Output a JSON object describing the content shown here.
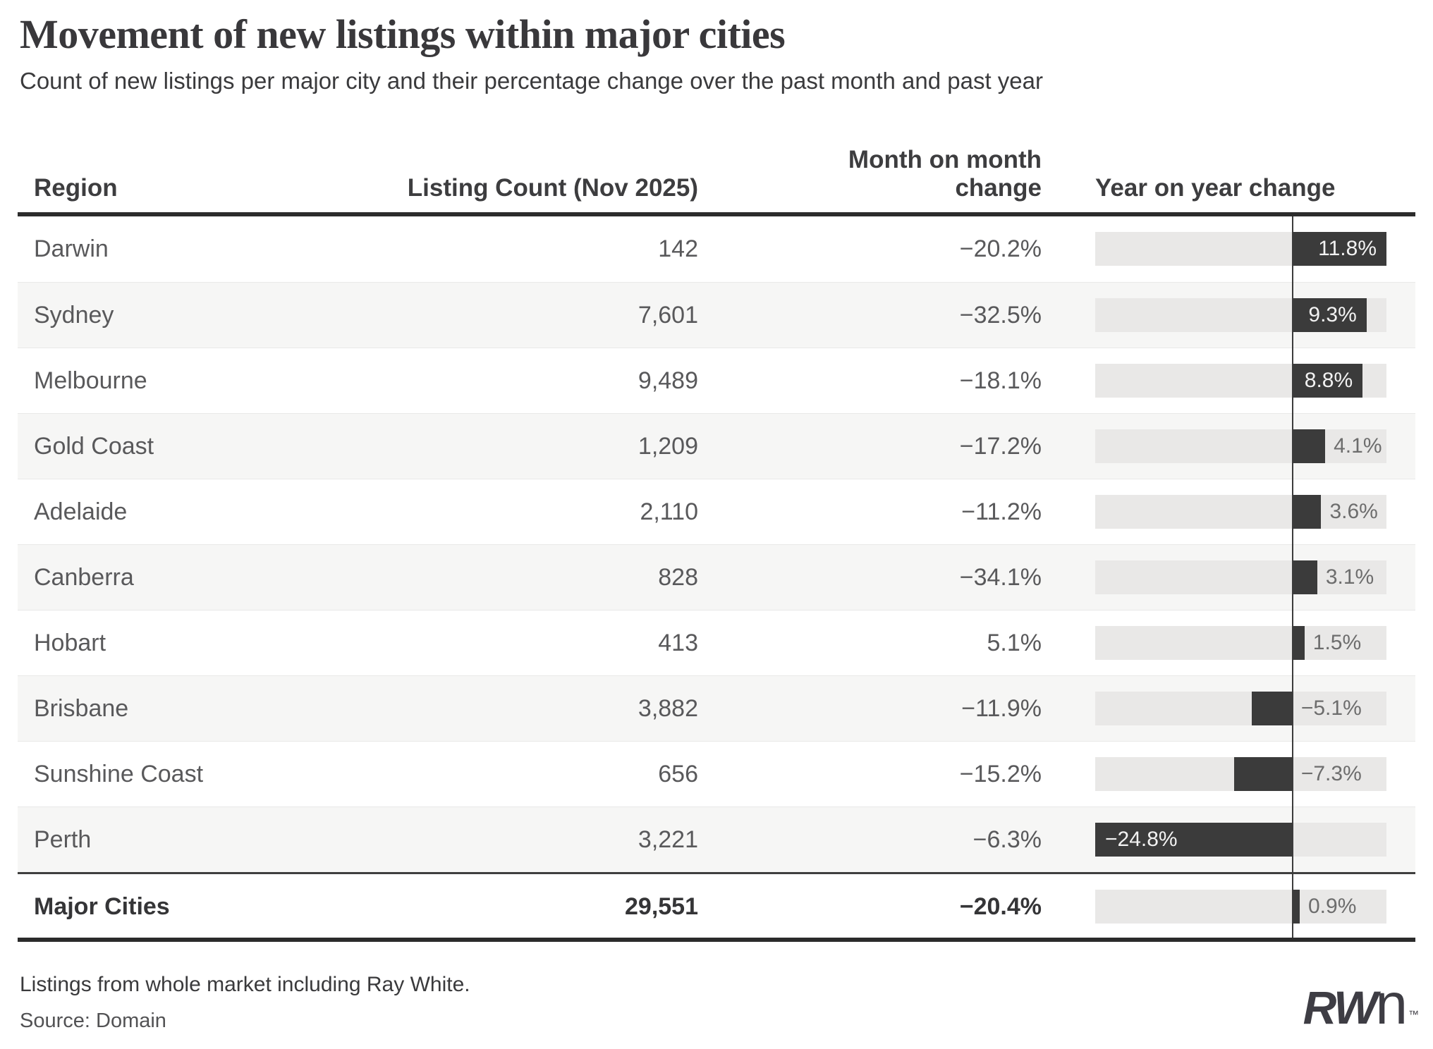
{
  "page": {
    "title": "Movement of new listings within major cities",
    "subtitle": "Count of new listings per major city and their percentage change over the past month and past year"
  },
  "table": {
    "headers": {
      "region": "Region",
      "count": "Listing Count (Nov 2025)",
      "mom": "Month on month change",
      "yoy": "Year on year change"
    },
    "rows": [
      {
        "region": "Darwin",
        "count": "142",
        "mom": "−20.2%",
        "yoy": 11.8,
        "yoy_label": "11.8%"
      },
      {
        "region": "Sydney",
        "count": "7,601",
        "mom": "−32.5%",
        "yoy": 9.3,
        "yoy_label": "9.3%"
      },
      {
        "region": "Melbourne",
        "count": "9,489",
        "mom": "−18.1%",
        "yoy": 8.8,
        "yoy_label": "8.8%"
      },
      {
        "region": "Gold Coast",
        "count": "1,209",
        "mom": "−17.2%",
        "yoy": 4.1,
        "yoy_label": "4.1%"
      },
      {
        "region": "Adelaide",
        "count": "2,110",
        "mom": "−11.2%",
        "yoy": 3.6,
        "yoy_label": "3.6%"
      },
      {
        "region": "Canberra",
        "count": "828",
        "mom": "−34.1%",
        "yoy": 3.1,
        "yoy_label": "3.1%"
      },
      {
        "region": "Hobart",
        "count": "413",
        "mom": "5.1%",
        "yoy": 1.5,
        "yoy_label": "1.5%"
      },
      {
        "region": "Brisbane",
        "count": "3,882",
        "mom": "−11.9%",
        "yoy": -5.1,
        "yoy_label": "−5.1%"
      },
      {
        "region": "Sunshine Coast",
        "count": "656",
        "mom": "−15.2%",
        "yoy": -7.3,
        "yoy_label": "−7.3%"
      },
      {
        "region": "Perth",
        "count": "3,221",
        "mom": "−6.3%",
        "yoy": -24.8,
        "yoy_label": "−24.8%"
      }
    ],
    "total": {
      "region": "Major Cities",
      "count": "29,551",
      "mom": "−20.4%",
      "yoy": 0.9,
      "yoy_label": "0.9%"
    }
  },
  "chart": {
    "axis": {
      "min": -24.8,
      "max": 11.8
    },
    "colors": {
      "bar": "#3b3b3b",
      "track": "#e9e8e7",
      "stripe": "#f6f6f5",
      "zero_line": "#3c3c3c",
      "label_inside": "#f2f2f2",
      "label_outside": "#6d6d6d"
    }
  },
  "chart_data": {
    "type": "bar",
    "orientation": "horizontal",
    "title": "Movement of new listings within major cities",
    "subtitle": "Count of new listings per major city and their percentage change over the past month and past year",
    "categories": [
      "Darwin",
      "Sydney",
      "Melbourne",
      "Gold Coast",
      "Adelaide",
      "Canberra",
      "Hobart",
      "Brisbane",
      "Sunshine Coast",
      "Perth",
      "Major Cities"
    ],
    "series": [
      {
        "name": "Listing Count (Nov 2025)",
        "values": [
          142,
          7601,
          9489,
          1209,
          2110,
          828,
          413,
          3882,
          656,
          3221,
          29551
        ]
      },
      {
        "name": "Month on month change (%)",
        "values": [
          -20.2,
          -32.5,
          -18.1,
          -17.2,
          -11.2,
          -34.1,
          5.1,
          -11.9,
          -15.2,
          -6.3,
          -20.4
        ]
      },
      {
        "name": "Year on year change (%)",
        "values": [
          11.8,
          9.3,
          8.8,
          4.1,
          3.6,
          3.1,
          1.5,
          -5.1,
          -7.3,
          -24.8,
          0.9
        ]
      }
    ],
    "xlabel": "Year on year change",
    "xlim": [
      -24.8,
      11.8
    ],
    "grid": false,
    "legend_position": "none"
  },
  "footer": {
    "note": "Listings from whole market including Ray White.",
    "source": "Source: Domain",
    "logo_rw": "RW",
    "logo_n": "n",
    "logo_tm": "™"
  }
}
